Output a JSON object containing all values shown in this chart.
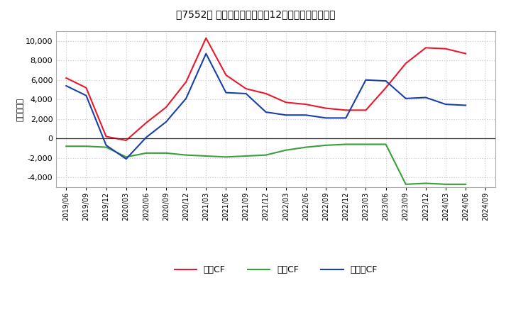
{
  "title": "　7552、 キャッシュフローの12か月移動合計の推移",
  "ylabel": "（百万円）",
  "x_labels": [
    "2019/06",
    "2019/09",
    "2019/12",
    "2020/03",
    "2020/06",
    "2020/09",
    "2020/12",
    "2021/03",
    "2021/06",
    "2021/09",
    "2021/12",
    "2022/03",
    "2022/06",
    "2022/09",
    "2022/12",
    "2023/03",
    "2023/06",
    "2023/09",
    "2023/12",
    "2024/03",
    "2024/06",
    "2024/09"
  ],
  "operating_cf": [
    6200,
    5200,
    200,
    -200,
    1600,
    3200,
    5800,
    10300,
    6500,
    5100,
    4600,
    3700,
    3500,
    3100,
    2900,
    2900,
    5200,
    7700,
    9300,
    9200,
    8700,
    null
  ],
  "investing_cf": [
    -800,
    -800,
    -900,
    -1900,
    -1500,
    -1500,
    -1700,
    -1800,
    -1900,
    -1800,
    -1700,
    -1200,
    -900,
    -700,
    -600,
    -600,
    -600,
    -4700,
    -4600,
    -4700,
    -4700,
    null
  ],
  "free_cf": [
    5400,
    4400,
    -700,
    -2100,
    100,
    1700,
    4100,
    8700,
    4700,
    4600,
    2700,
    2400,
    2400,
    2100,
    2100,
    6000,
    5900,
    4100,
    4200,
    3500,
    3400,
    null
  ],
  "operating_color": "#e8192c",
  "investing_color": "#3a9e3a",
  "free_cf_color": "#1a3faa",
  "background_color": "#ffffff",
  "grid_color": "#c8c8c8",
  "ylim": [
    -5000,
    11000
  ],
  "yticks": [
    -4000,
    -2000,
    0,
    2000,
    4000,
    6000,
    8000,
    10000
  ],
  "legend_labels": [
    "営業CF",
    "投資CF",
    "フリーCF"
  ]
}
